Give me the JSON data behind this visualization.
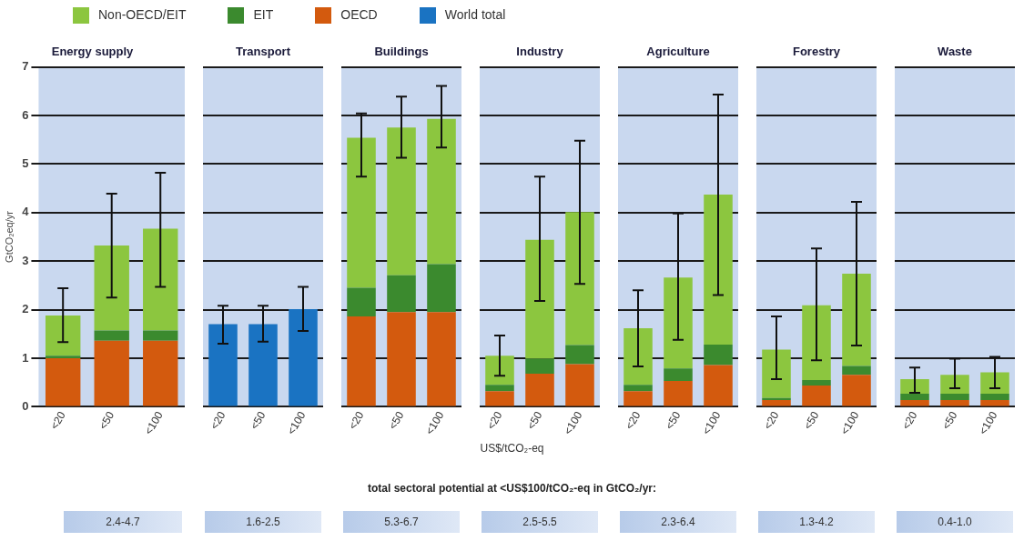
{
  "chart_data": [
    {
      "type": "bar",
      "title": "Energy supply",
      "ylabel": "GtCO₂eq/yr",
      "categories": [
        "<20",
        "<50",
        "<100"
      ],
      "stacked": true,
      "ylim": [
        0,
        7
      ],
      "yticks": [
        0,
        1,
        2,
        3,
        4,
        5,
        6,
        7
      ],
      "grid": "y",
      "legend": "top",
      "series": [
        {
          "name": "OECD",
          "color": "#d35a0e",
          "values": [
            1.0,
            1.36,
            1.36
          ]
        },
        {
          "name": "EIT",
          "color": "#3b8a2e",
          "values": [
            0.05,
            0.21,
            0.21
          ]
        },
        {
          "name": "Non-OECD/EIT",
          "color": "#8cc63f",
          "values": [
            0.83,
            1.75,
            2.1
          ],
          "errors": [
            [
              1.33,
              2.44
            ],
            [
              2.25,
              4.39
            ],
            [
              2.47,
              4.82
            ]
          ]
        }
      ],
      "annotations": [
        "2.4-4.7"
      ]
    },
    {
      "type": "bar",
      "title": "Transport",
      "categories": [
        "<20",
        "<50",
        "<100"
      ],
      "stacked": true,
      "ylim": [
        0,
        7
      ],
      "yticks": [
        0,
        1,
        2,
        3,
        4,
        5,
        6,
        7
      ],
      "grid": "y",
      "legend": "top",
      "tick_labels": "x",
      "series": [
        {
          "name": "World total",
          "color": "#1a73c2",
          "values": [
            1.7,
            1.7,
            2.01
          ],
          "errors": [
            [
              1.3,
              2.08
            ],
            [
              1.34,
              2.08
            ],
            [
              1.56,
              2.47
            ]
          ]
        }
      ],
      "annotations": [
        "1.6-2.5"
      ]
    },
    {
      "type": "bar",
      "title": "Buildings",
      "categories": [
        "<20",
        "<50",
        "<100"
      ],
      "stacked": true,
      "ylim": [
        0,
        7
      ],
      "yticks": [
        0,
        1,
        2,
        3,
        4,
        5,
        6,
        7
      ],
      "grid": "y",
      "tick_labels": "x",
      "series": [
        {
          "color": "#d35a0e",
          "values": [
            1.86,
            1.95,
            1.95
          ]
        },
        {
          "color": "#3b8a2e",
          "values": [
            0.59,
            0.76,
            0.99
          ]
        },
        {
          "color": "#8cc63f",
          "values": [
            3.09,
            3.04,
            2.99
          ],
          "errors": [
            [
              4.74,
              6.04
            ],
            [
              5.13,
              6.39
            ],
            [
              5.34,
              6.61
            ]
          ]
        }
      ],
      "annotations": [
        "5.3-6.7"
      ]
    },
    {
      "type": "bar",
      "title": "Industry",
      "xlabel": "US$/tCO₂-eq",
      "categories": [
        "<20",
        "<50",
        "<100"
      ],
      "stacked": true,
      "ylim": [
        0,
        7
      ],
      "yticks": [
        0,
        1,
        2,
        3,
        4,
        5,
        6,
        7
      ],
      "grid": "y",
      "tick_labels": "x",
      "series": [
        {
          "color": "#d35a0e",
          "values": [
            0.32,
            0.68,
            0.88
          ]
        },
        {
          "color": "#3b8a2e",
          "values": [
            0.13,
            0.31,
            0.39
          ]
        },
        {
          "color": "#8cc63f",
          "values": [
            0.6,
            2.45,
            2.74
          ],
          "errors": [
            [
              0.64,
              1.47
            ],
            [
              2.18,
              4.74
            ],
            [
              2.53,
              5.48
            ]
          ]
        }
      ],
      "annotations": [
        "total sectoral potential at <US$100/tCO₂-eq in GtCO₂/yr:",
        "2.5-5.5"
      ]
    },
    {
      "type": "bar",
      "title": "Agriculture",
      "categories": [
        "<20",
        "<50",
        "<100"
      ],
      "stacked": true,
      "ylim": [
        0,
        7
      ],
      "yticks": [
        0,
        1,
        2,
        3,
        4,
        5,
        6,
        7
      ],
      "grid": "y",
      "tick_labels": "x",
      "series": [
        {
          "color": "#d35a0e",
          "values": [
            0.32,
            0.53,
            0.86
          ]
        },
        {
          "color": "#3b8a2e",
          "values": [
            0.13,
            0.26,
            0.42
          ]
        },
        {
          "color": "#8cc63f",
          "values": [
            1.17,
            1.87,
            3.09
          ],
          "errors": [
            [
              0.83,
              2.4
            ],
            [
              1.38,
              3.98
            ],
            [
              2.3,
              6.43
            ]
          ]
        }
      ],
      "annotations": [
        "2.3-6.4"
      ]
    },
    {
      "type": "bar",
      "title": "Forestry",
      "categories": [
        "<20",
        "<50",
        "<100"
      ],
      "stacked": true,
      "ylim": [
        0,
        7
      ],
      "yticks": [
        0,
        1,
        2,
        3,
        4,
        5,
        6,
        7
      ],
      "grid": "y",
      "tick_labels": "x",
      "series": [
        {
          "color": "#d35a0e",
          "values": [
            0.14,
            0.44,
            0.66
          ]
        },
        {
          "color": "#3b8a2e",
          "values": [
            0.04,
            0.11,
            0.18
          ]
        },
        {
          "color": "#8cc63f",
          "values": [
            1.0,
            1.54,
            1.9
          ],
          "errors": [
            [
              0.57,
              1.86
            ],
            [
              0.96,
              3.26
            ],
            [
              1.26,
              4.22
            ]
          ]
        }
      ],
      "annotations": [
        "1.3-4.2"
      ]
    },
    {
      "type": "bar",
      "title": "Waste",
      "categories": [
        "<20",
        "<50",
        "<100"
      ],
      "stacked": true,
      "ylim": [
        0,
        7
      ],
      "yticks": [
        0,
        1,
        2,
        3,
        4,
        5,
        6,
        7
      ],
      "grid": "y",
      "tick_labels": "x",
      "series": [
        {
          "color": "#d35a0e",
          "values": [
            0.14,
            0.14,
            0.14
          ]
        },
        {
          "color": "#3b8a2e",
          "values": [
            0.13,
            0.13,
            0.13
          ]
        },
        {
          "color": "#8cc63f",
          "values": [
            0.3,
            0.39,
            0.44
          ],
          "errors": [
            [
              0.29,
              0.81
            ],
            [
              0.38,
              0.99
            ],
            [
              0.38,
              1.03
            ]
          ]
        }
      ],
      "annotations": [
        "0.4-1.0"
      ]
    }
  ]
}
